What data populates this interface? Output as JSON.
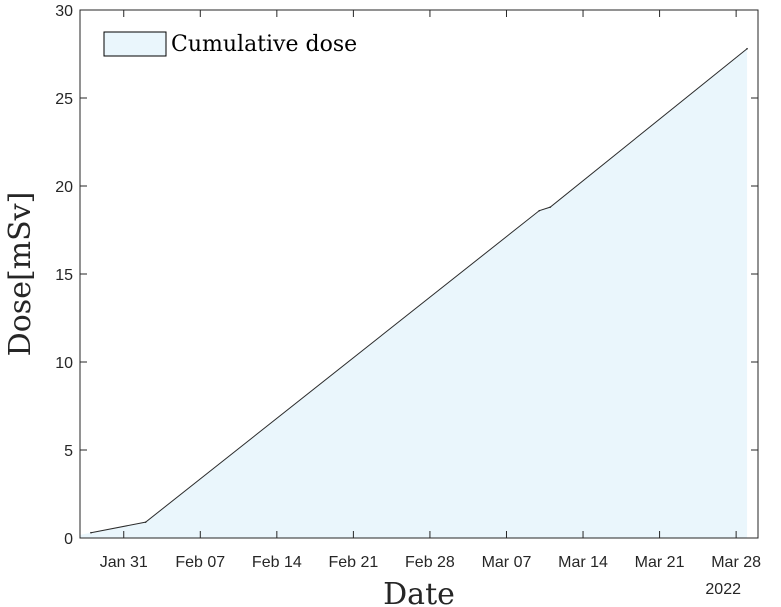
{
  "chart_data": {
    "type": "area",
    "x": [
      "2022-01-28",
      "2022-02-02",
      "2022-03-10",
      "2022-03-11",
      "2022-03-29"
    ],
    "values": [
      0.3,
      0.9,
      18.6,
      18.8,
      27.8
    ],
    "series": [
      {
        "name": "Cumulative dose",
        "color": "#eaf6fc",
        "line_color": "#2b2b2b"
      }
    ],
    "xlabel": "Date",
    "ylabel": "Dose[mSv]",
    "xlim": [
      "2022-01-27",
      "2022-03-30"
    ],
    "ylim": [
      0,
      30
    ],
    "x_ticks": [
      "2022-01-31",
      "2022-02-07",
      "2022-02-14",
      "2022-02-21",
      "2022-02-28",
      "2022-03-07",
      "2022-03-14",
      "2022-03-21",
      "2022-03-28"
    ],
    "x_tick_labels": [
      "Jan 31",
      "Feb 07",
      "Feb 14",
      "Feb 21",
      "Feb 28",
      "Mar 07",
      "Mar 14",
      "Mar 21",
      "Mar 28"
    ],
    "y_ticks": [
      0,
      5,
      10,
      15,
      20,
      25,
      30
    ],
    "year_label": "2022",
    "legend": {
      "label": "Cumulative dose",
      "position": "top-left"
    },
    "grid": false
  }
}
